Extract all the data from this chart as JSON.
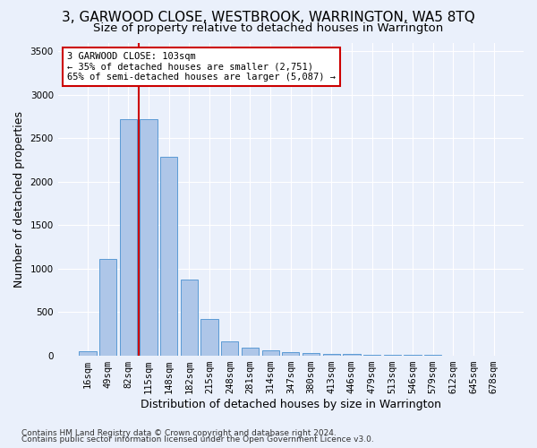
{
  "title": "3, GARWOOD CLOSE, WESTBROOK, WARRINGTON, WA5 8TQ",
  "subtitle": "Size of property relative to detached houses in Warrington",
  "xlabel": "Distribution of detached houses by size in Warrington",
  "ylabel": "Number of detached properties",
  "footer1": "Contains HM Land Registry data © Crown copyright and database right 2024.",
  "footer2": "Contains public sector information licensed under the Open Government Licence v3.0.",
  "bar_labels": [
    "16sqm",
    "49sqm",
    "82sqm",
    "115sqm",
    "148sqm",
    "182sqm",
    "215sqm",
    "248sqm",
    "281sqm",
    "314sqm",
    "347sqm",
    "380sqm",
    "413sqm",
    "446sqm",
    "479sqm",
    "513sqm",
    "546sqm",
    "579sqm",
    "612sqm",
    "645sqm",
    "678sqm"
  ],
  "bar_values": [
    50,
    1110,
    2720,
    2720,
    2290,
    870,
    420,
    165,
    90,
    55,
    40,
    30,
    20,
    15,
    10,
    8,
    5,
    3,
    0,
    0,
    0
  ],
  "bar_color": "#aec6e8",
  "bar_edge_color": "#5b9bd5",
  "vline_color": "#cc0000",
  "vline_pos": 2.5,
  "annotation_text": "3 GARWOOD CLOSE: 103sqm\n← 35% of detached houses are smaller (2,751)\n65% of semi-detached houses are larger (5,087) →",
  "annotation_box_color": "#ffffff",
  "annotation_box_edge_color": "#cc0000",
  "ylim": [
    0,
    3600
  ],
  "yticks": [
    0,
    500,
    1000,
    1500,
    2000,
    2500,
    3000,
    3500
  ],
  "background_color": "#eaf0fb",
  "grid_color": "#ffffff",
  "title_fontsize": 11,
  "subtitle_fontsize": 9.5,
  "axis_label_fontsize": 9,
  "tick_fontsize": 7.5,
  "footer_fontsize": 6.5
}
